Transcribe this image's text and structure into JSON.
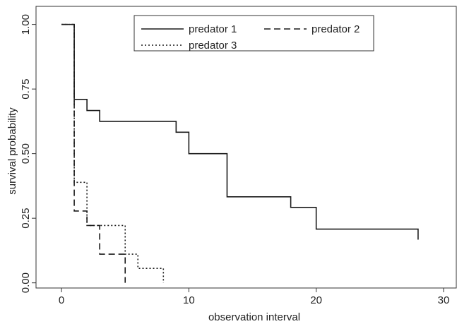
{
  "chart_data": {
    "type": "line",
    "title": "",
    "xlabel": "observation interval",
    "ylabel": "survival probability",
    "xlim": [
      -2,
      31
    ],
    "ylim": [
      -0.02,
      1.07
    ],
    "xticks": [
      0,
      10,
      20,
      30
    ],
    "xtick_labels": [
      "0",
      "10",
      "20",
      "30"
    ],
    "yticks": [
      0,
      0.25,
      0.5,
      0.75,
      1.0
    ],
    "ytick_labels": [
      "0.00",
      "0.25",
      "0.50",
      "0.75",
      "1.00"
    ],
    "grid": false,
    "legend": "top-center",
    "step": "post",
    "series": [
      {
        "name": "predator 1",
        "style": "solid",
        "x": [
          0,
          1,
          2,
          3,
          9,
          10,
          13,
          18,
          20,
          28
        ],
        "y": [
          1.0,
          0.71,
          0.667,
          0.625,
          0.583,
          0.5,
          0.333,
          0.292,
          0.208,
          0.167
        ]
      },
      {
        "name": "predator 2",
        "style": "dashed",
        "x": [
          0,
          1,
          2,
          3,
          5
        ],
        "y": [
          1.0,
          0.278,
          0.222,
          0.111,
          0.0
        ]
      },
      {
        "name": "predator 3",
        "style": "dotted",
        "x": [
          0,
          1,
          2,
          5,
          6,
          8
        ],
        "y": [
          1.0,
          0.389,
          0.222,
          0.111,
          0.056,
          0.0
        ]
      }
    ]
  }
}
